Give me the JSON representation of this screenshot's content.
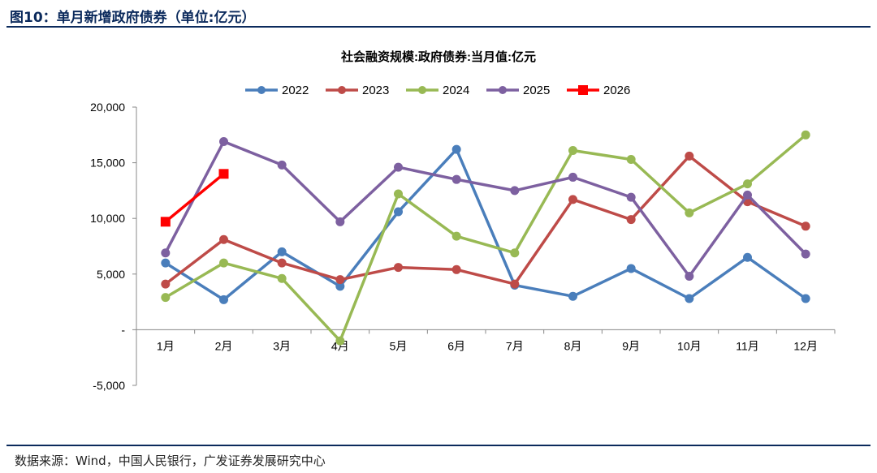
{
  "figure": {
    "title": "图10：单月新增政府债券（单位:亿元）",
    "source": "数据来源：Wind，中国人民银行，广发证券发展研究中心"
  },
  "chart_data": {
    "type": "line",
    "title": "社会融资规模:政府债券:当月值:亿元",
    "xlabel": "",
    "ylabel": "",
    "categories": [
      "1月",
      "2月",
      "3月",
      "4月",
      "5月",
      "6月",
      "7月",
      "8月",
      "9月",
      "10月",
      "11月",
      "12月"
    ],
    "ylim": [
      -5000,
      20000
    ],
    "yticks": [
      -5000,
      0,
      5000,
      10000,
      15000,
      20000
    ],
    "ytick_labels": [
      "-5,000",
      "-",
      "5,000",
      "10,000",
      "15,000",
      "20,000"
    ],
    "grid": false,
    "legend_position": "top",
    "series": [
      {
        "name": "2022",
        "color": "#4a7ebb",
        "marker": "circle",
        "values": [
          6000,
          2700,
          7000,
          3900,
          10600,
          16200,
          4000,
          3000,
          5500,
          2800,
          6500,
          2800
        ]
      },
      {
        "name": "2023",
        "color": "#be4b48",
        "marker": "circle",
        "values": [
          4100,
          8100,
          6000,
          4500,
          5600,
          5400,
          4100,
          11700,
          9900,
          15600,
          11500,
          9300
        ]
      },
      {
        "name": "2024",
        "color": "#98b954",
        "marker": "circle",
        "values": [
          2900,
          6000,
          4600,
          -1000,
          12200,
          8400,
          6900,
          16100,
          15300,
          10500,
          13100,
          17500
        ]
      },
      {
        "name": "2025",
        "color": "#7d60a0",
        "marker": "circle",
        "values": [
          6900,
          16900,
          14800,
          9700,
          14600,
          13500,
          12500,
          13700,
          11900,
          4800,
          12100,
          6800
        ]
      },
      {
        "name": "2026",
        "color": "#ff0000",
        "marker": "square",
        "values": [
          9700,
          14000,
          null,
          null,
          null,
          null,
          null,
          null,
          null,
          null,
          null,
          null
        ]
      }
    ]
  }
}
